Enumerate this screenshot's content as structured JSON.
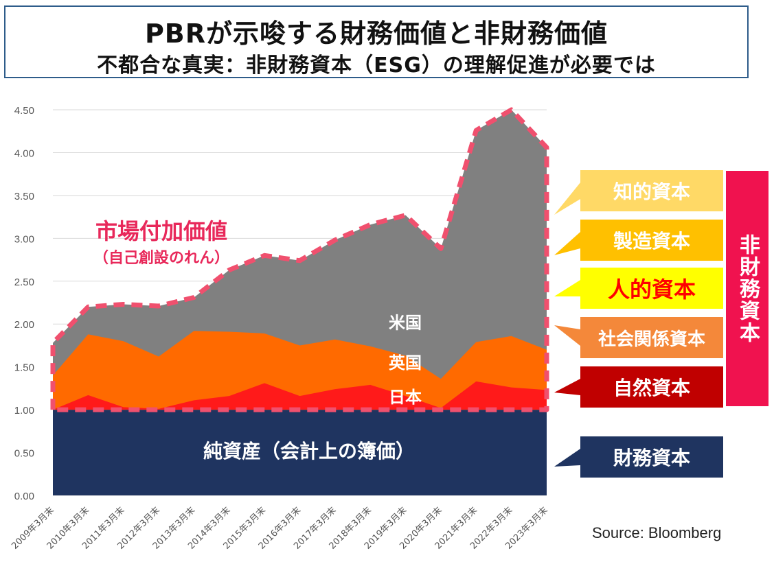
{
  "title": "PBRが示唆する財務価値と非財務価値",
  "subtitle": "不都合な真実：非財務資本（ESG）の理解促進が必要では",
  "source": "Source: Bloomberg",
  "chart_data": {
    "type": "area",
    "categories": [
      "2009年3月末",
      "2010年3月末",
      "2011年3月末",
      "2012年3月末",
      "2013年3月末",
      "2014年3月末",
      "2015年3月末",
      "2016年3月末",
      "2017年3月末",
      "2018年3月末",
      "2019年3月末",
      "2020年3月末",
      "2021年3月末",
      "2022年3月末",
      "2023年3月末"
    ],
    "ylim": [
      0,
      4.5
    ],
    "yticks": [
      "0.00",
      "0.50",
      "1.00",
      "1.50",
      "2.00",
      "2.50",
      "3.00",
      "3.50",
      "4.00",
      "4.50"
    ],
    "grid": true,
    "series": [
      {
        "name": "米国",
        "color": "#808080",
        "values": [
          1.78,
          2.2,
          2.23,
          2.21,
          2.31,
          2.63,
          2.8,
          2.74,
          2.98,
          3.16,
          3.27,
          2.88,
          4.26,
          4.5,
          4.06
        ]
      },
      {
        "name": "英国",
        "color": "#ff6a00",
        "values": [
          1.4,
          1.88,
          1.8,
          1.62,
          1.92,
          1.91,
          1.89,
          1.75,
          1.82,
          1.74,
          1.63,
          1.36,
          1.79,
          1.86,
          1.7
        ]
      },
      {
        "name": "日本",
        "color": "#ff1a1a",
        "values": [
          1.0,
          1.17,
          1.03,
          1.01,
          1.11,
          1.16,
          1.31,
          1.16,
          1.24,
          1.29,
          1.16,
          1.02,
          1.33,
          1.26,
          1.23
        ]
      }
    ],
    "base": {
      "label": "純資産（会計上の簿価）",
      "value": 1.0,
      "color": "#1f3460"
    },
    "annotations": {
      "market_value": "市場付加価値",
      "market_value_sub": "（自己創設のれん）"
    }
  },
  "legend": {
    "boxes": [
      {
        "label": "知的資本",
        "bg": "#ffd966",
        "fg": "#ffffff"
      },
      {
        "label": "製造資本",
        "bg": "#ffc000",
        "fg": "#ffffff"
      },
      {
        "label": "人的資本",
        "bg": "#ffff00",
        "fg": "#ff0000"
      },
      {
        "label": "社会関係資本",
        "bg": "#f4883a",
        "fg": "#ffffff"
      },
      {
        "label": "自然資本",
        "bg": "#c00000",
        "fg": "#ffffff"
      },
      {
        "label": "財務資本",
        "bg": "#1f3460",
        "fg": "#ffffff"
      }
    ],
    "nonfinancial_label": "非財務資本"
  }
}
